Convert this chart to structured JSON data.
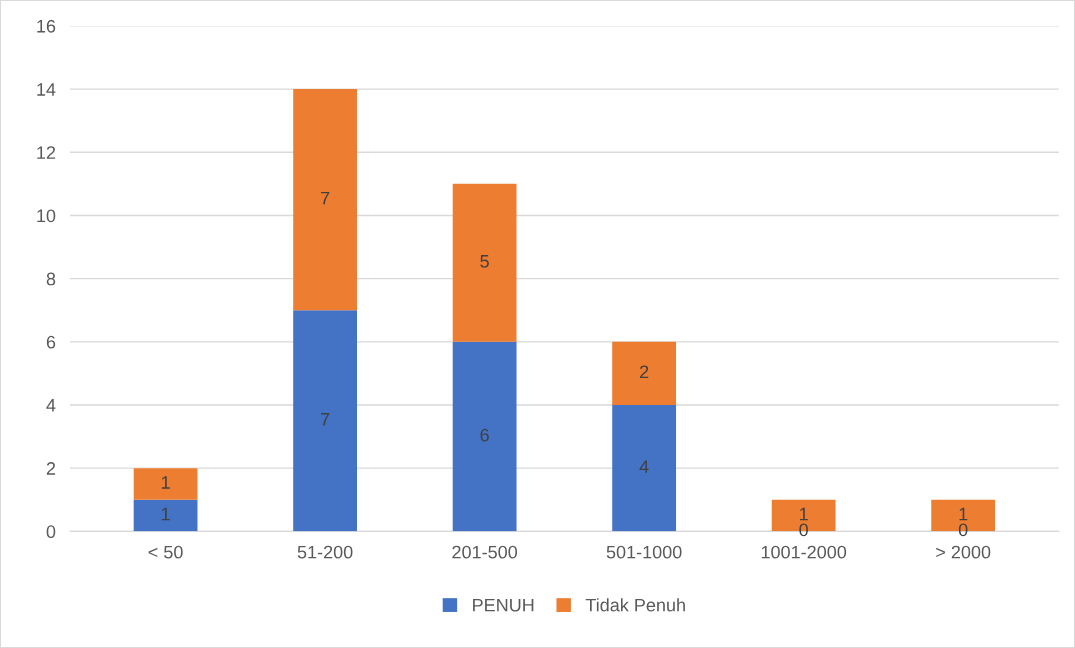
{
  "chart_data": {
    "type": "bar",
    "stacked": true,
    "categories": [
      "< 50",
      "51-200",
      "201-500",
      "501-1000",
      "1001-2000",
      "> 2000"
    ],
    "series": [
      {
        "name": "PENUH",
        "color": "#4472c4",
        "values": [
          1,
          7,
          6,
          4,
          0,
          0
        ]
      },
      {
        "name": "Tidak Penuh",
        "color": "#ed7d31",
        "values": [
          1,
          7,
          5,
          2,
          1,
          1
        ]
      }
    ],
    "ylim": [
      0,
      16
    ],
    "yticks": [
      0,
      2,
      4,
      6,
      8,
      10,
      12,
      14,
      16
    ],
    "grid": "y",
    "legend": "bottom",
    "data_labels": true
  }
}
